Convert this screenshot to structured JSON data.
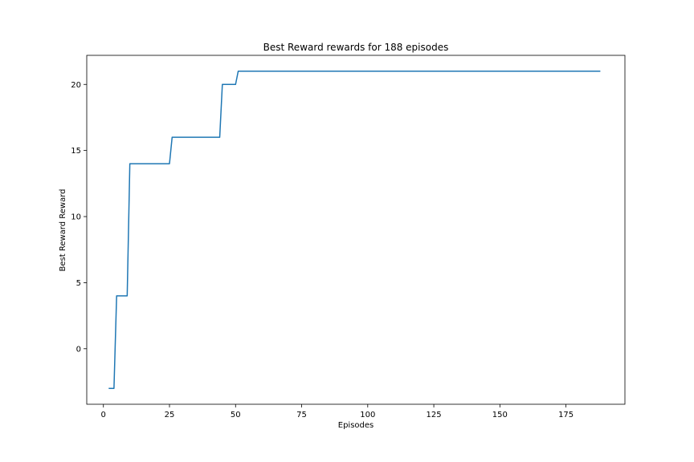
{
  "chart_data": {
    "type": "line",
    "title": "Best Reward rewards for 188 episodes",
    "xlabel": "Episodes",
    "ylabel": "Best Reward Reward",
    "xlim": [
      -6.3,
      197.3
    ],
    "ylim": [
      -4.2,
      22.2
    ],
    "xticks": [
      0,
      25,
      50,
      75,
      100,
      125,
      150,
      175
    ],
    "yticks": [
      0,
      5,
      10,
      15,
      20
    ],
    "grid": false,
    "legend": "none",
    "series": [
      {
        "color": "#1f77b4",
        "x": [
          2,
          3,
          4,
          5,
          6,
          7,
          8,
          9,
          10,
          11,
          12,
          13,
          14,
          15,
          16,
          17,
          18,
          19,
          20,
          21,
          22,
          23,
          24,
          25,
          26,
          27,
          28,
          29,
          30,
          31,
          32,
          33,
          34,
          35,
          36,
          37,
          38,
          39,
          40,
          41,
          42,
          43,
          44,
          45,
          46,
          47,
          48,
          49,
          50,
          51,
          188
        ],
        "y": [
          -3,
          -3,
          -3,
          4,
          4,
          4,
          4,
          4,
          14,
          14,
          14,
          14,
          14,
          14,
          14,
          14,
          14,
          14,
          14,
          14,
          14,
          14,
          14,
          14,
          16,
          16,
          16,
          16,
          16,
          16,
          16,
          16,
          16,
          16,
          16,
          16,
          16,
          16,
          16,
          16,
          16,
          16,
          16,
          20,
          20,
          20,
          20,
          20,
          20,
          21,
          21
        ]
      }
    ]
  }
}
